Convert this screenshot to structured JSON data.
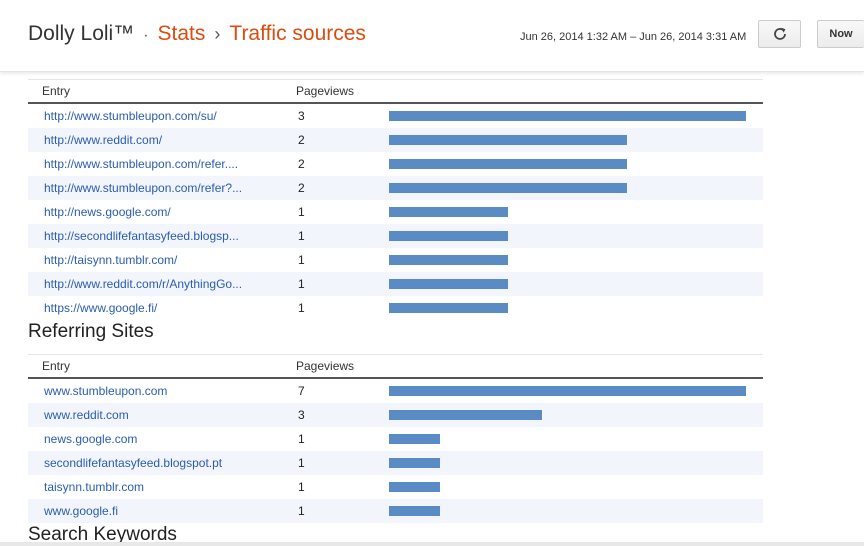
{
  "header": {
    "blog_name": "Dolly Loli™",
    "dot": "·",
    "stats": "Stats",
    "sep": "›",
    "current": "Traffic sources",
    "date_range": "Jun 26, 2014 1:32 AM – Jun 26, 2014 3:31 AM",
    "refresh_icon": "refresh-icon",
    "now_label": "Now"
  },
  "colors": {
    "accent": "#dd4b0f",
    "link": "#2a5db0",
    "bar": "#5b8bc4"
  },
  "referring_urls": {
    "col_entry": "Entry",
    "col_pageviews": "Pageviews",
    "rows": [
      {
        "entry": "http://www.stumbleupon.com/su/",
        "pageviews": 3
      },
      {
        "entry": "http://www.reddit.com/",
        "pageviews": 2
      },
      {
        "entry": "http://www.stumbleupon.com/refer....",
        "pageviews": 2
      },
      {
        "entry": "http://www.stumbleupon.com/refer?...",
        "pageviews": 2
      },
      {
        "entry": "http://news.google.com/",
        "pageviews": 1
      },
      {
        "entry": "http://secondlifefantasyfeed.blogsp...",
        "pageviews": 1
      },
      {
        "entry": "http://taisynn.tumblr.com/",
        "pageviews": 1
      },
      {
        "entry": "http://www.reddit.com/r/AnythingGo...",
        "pageviews": 1
      },
      {
        "entry": "https://www.google.fi/",
        "pageviews": 1
      }
    ]
  },
  "referring_sites": {
    "title": "Referring Sites",
    "col_entry": "Entry",
    "col_pageviews": "Pageviews",
    "rows": [
      {
        "entry": "www.stumbleupon.com",
        "pageviews": 7
      },
      {
        "entry": "www.reddit.com",
        "pageviews": 3
      },
      {
        "entry": "news.google.com",
        "pageviews": 1
      },
      {
        "entry": "secondlifefantasyfeed.blogspot.pt",
        "pageviews": 1
      },
      {
        "entry": "taisynn.tumblr.com",
        "pageviews": 1
      },
      {
        "entry": "www.google.fi",
        "pageviews": 1
      }
    ]
  },
  "search_keywords": {
    "title": "Search Keywords"
  }
}
